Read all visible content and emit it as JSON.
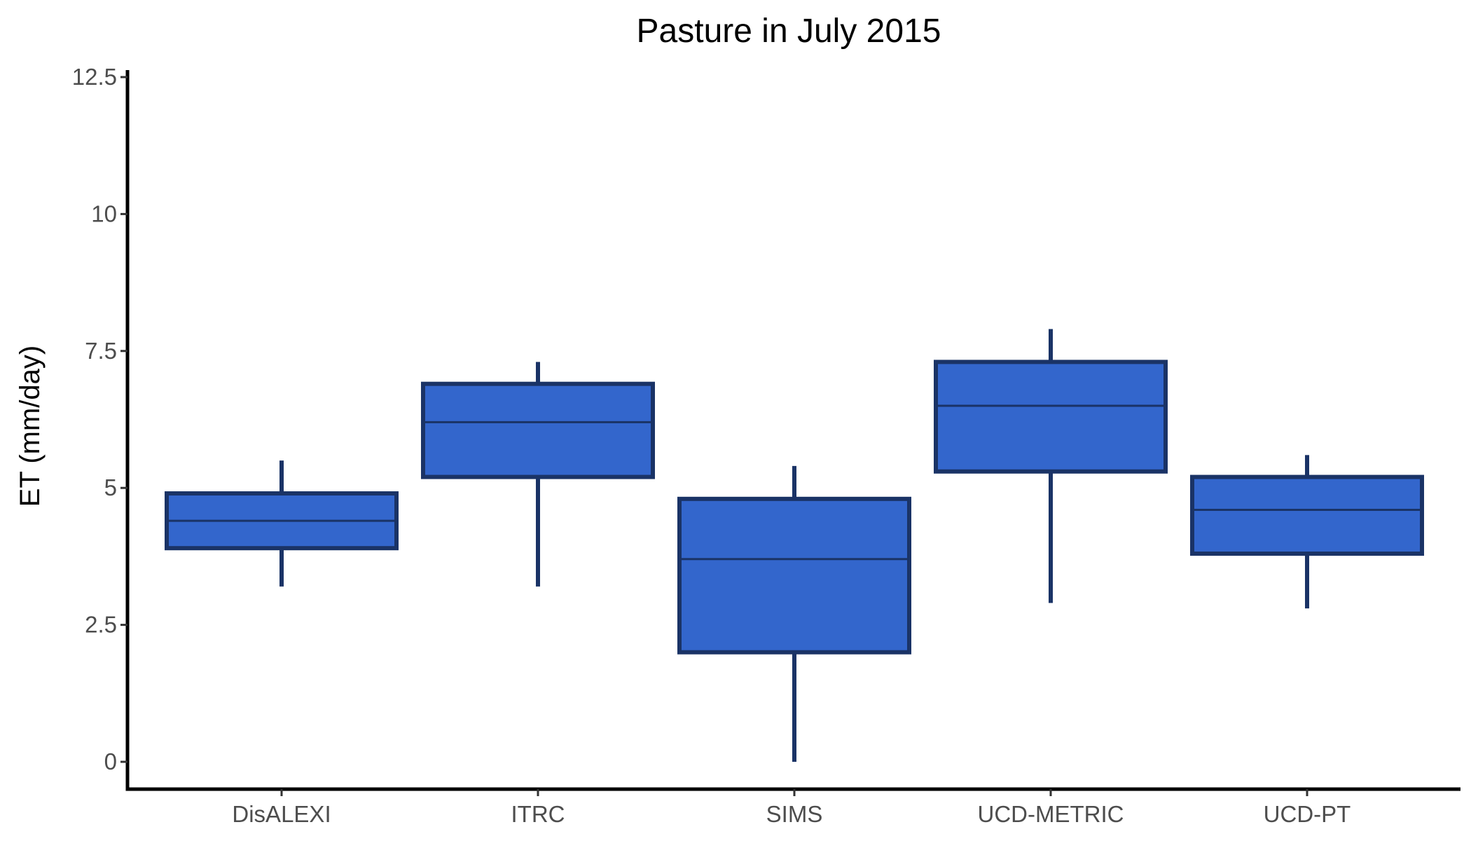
{
  "chart_data": {
    "type": "boxplot",
    "title": "Pasture in July 2015",
    "xlabel": "",
    "ylabel": "ET (mm/day)",
    "ylim": [
      -0.6,
      12.6
    ],
    "yticks": [
      0,
      2.5,
      5,
      7.5,
      10,
      12.5
    ],
    "ytick_labels": [
      "0",
      "2.5",
      "5",
      "7.5",
      "10",
      "12.5"
    ],
    "grid": false,
    "legend": "none",
    "colors": {
      "fill": "#3366CC",
      "stroke": "#1A3366"
    },
    "categories": [
      "DisALEXI",
      "ITRC",
      "SIMS",
      "UCD-METRIC",
      "UCD-PT"
    ],
    "boxes": [
      {
        "category": "DisALEXI",
        "whisker_low": 3.2,
        "q1": 3.9,
        "median": 4.4,
        "q3": 4.9,
        "whisker_high": 5.5
      },
      {
        "category": "ITRC",
        "whisker_low": 3.2,
        "q1": 5.2,
        "median": 6.2,
        "q3": 6.9,
        "whisker_high": 7.3
      },
      {
        "category": "SIMS",
        "whisker_low": 0.0,
        "q1": 2.0,
        "median": 3.7,
        "q3": 4.8,
        "whisker_high": 5.4
      },
      {
        "category": "UCD-METRIC",
        "whisker_low": 2.9,
        "q1": 5.3,
        "median": 6.5,
        "q3": 7.3,
        "whisker_high": 7.9
      },
      {
        "category": "UCD-PT",
        "whisker_low": 2.8,
        "q1": 3.8,
        "median": 4.6,
        "q3": 5.2,
        "whisker_high": 5.6
      }
    ]
  }
}
